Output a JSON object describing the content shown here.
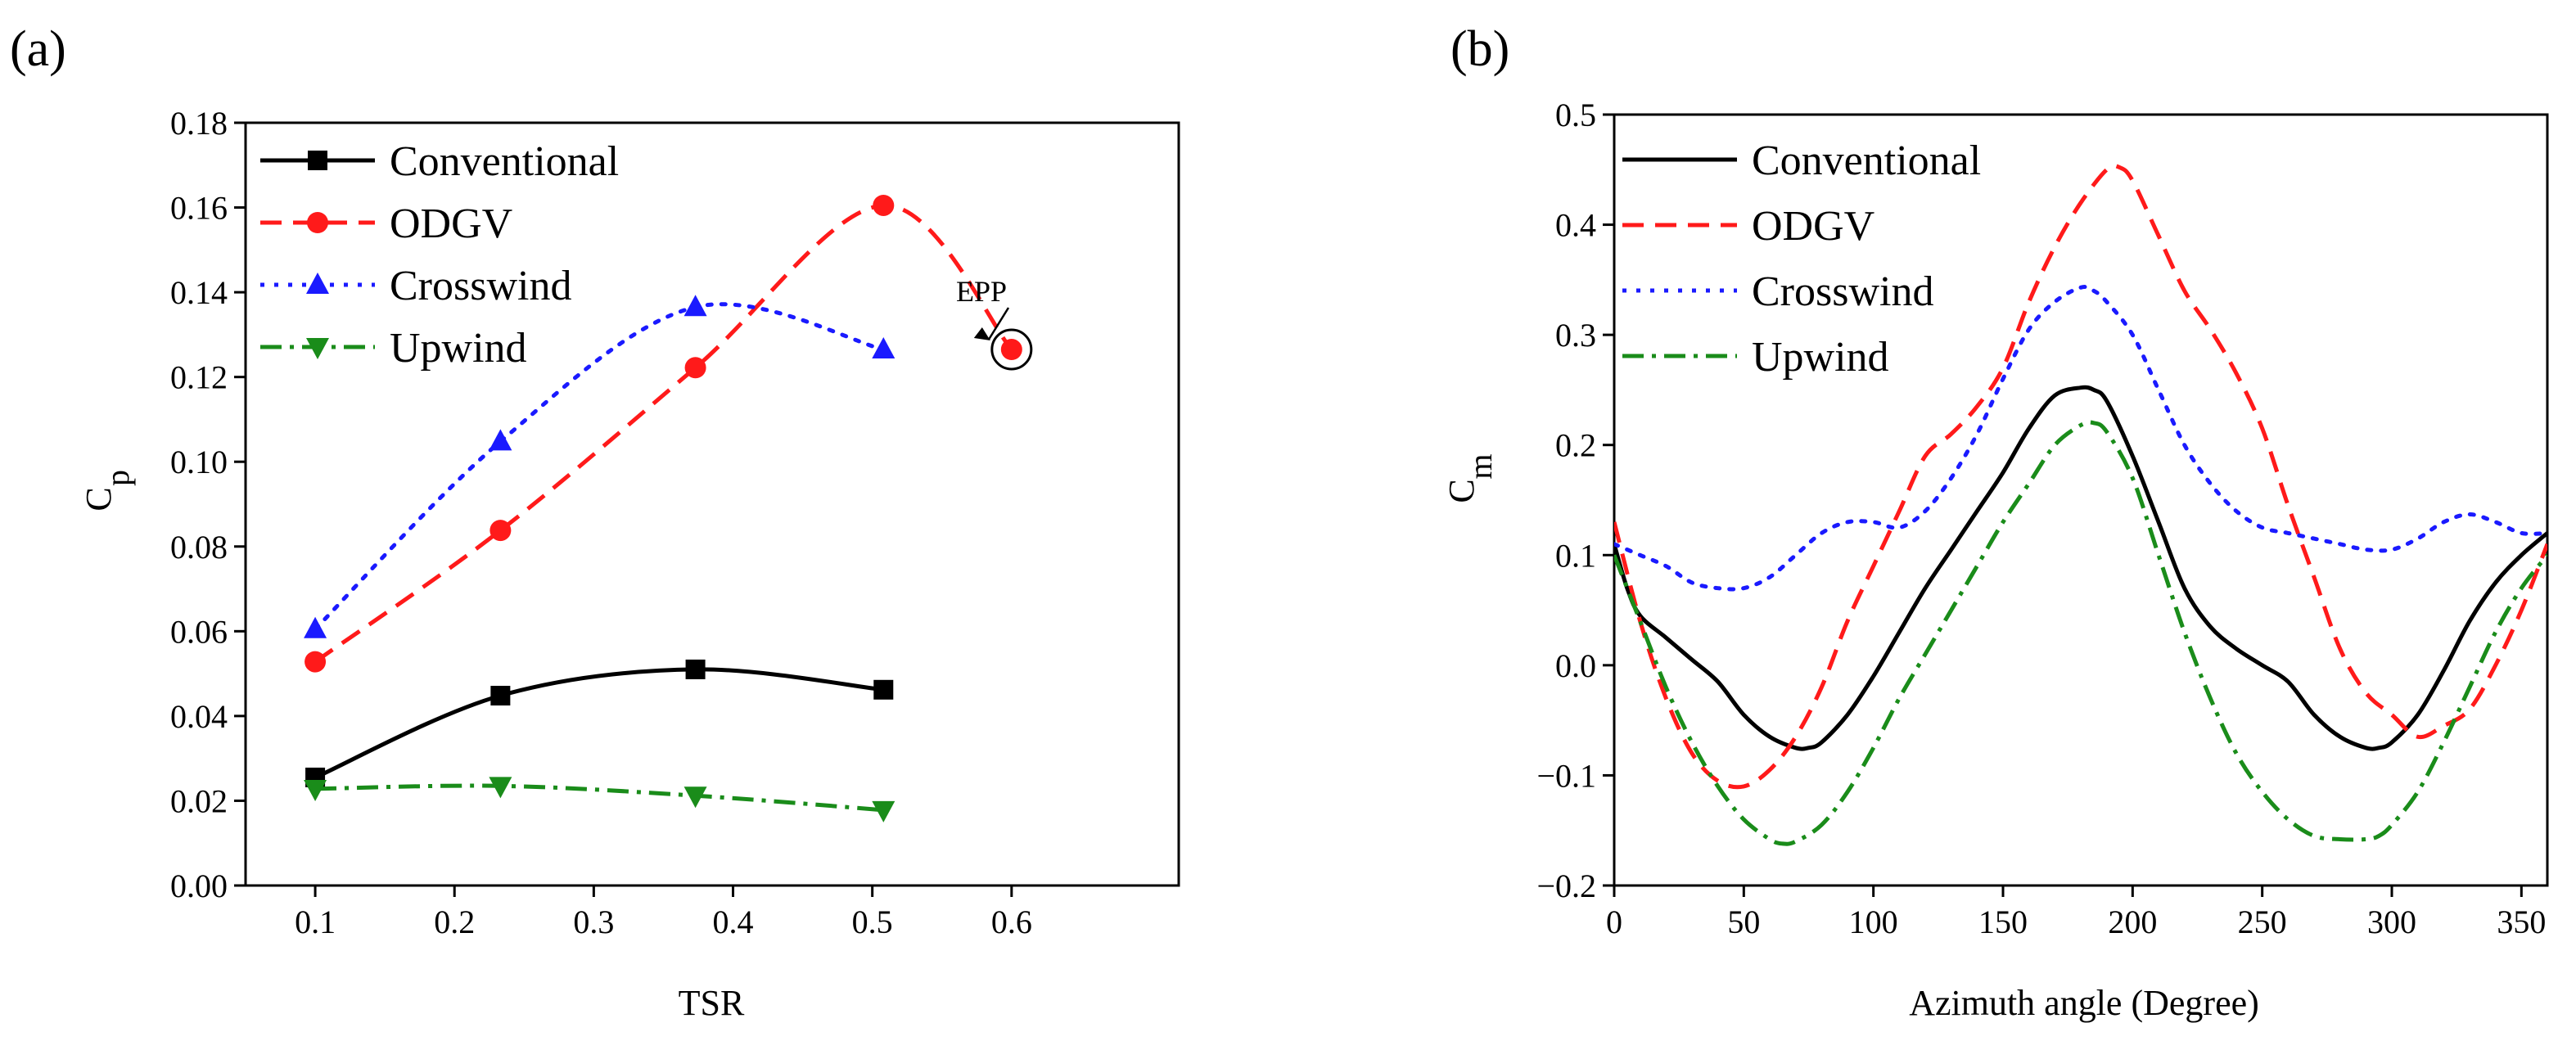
{
  "chart_data": [
    {
      "type": "line",
      "panel_label": "(a)",
      "xlabel": "TSR",
      "ylabel": "C",
      "ylabel_sub": "p",
      "xlim": [
        0.05,
        0.72
      ],
      "ylim": [
        0.0,
        0.18
      ],
      "xticks": [
        0.1,
        0.2,
        0.3,
        0.4,
        0.5,
        0.6
      ],
      "xtick_labels": [
        "0.1",
        "0.2",
        "0.3",
        "0.4",
        "0.5",
        "0.6"
      ],
      "yticks": [
        0.0,
        0.02,
        0.04,
        0.06,
        0.08,
        0.1,
        0.12,
        0.14,
        0.16,
        0.18
      ],
      "ytick_labels": [
        "0.00",
        "0.02",
        "0.04",
        "0.06",
        "0.08",
        "0.10",
        "0.12",
        "0.14",
        "0.16",
        "0.18"
      ],
      "legend_position": "top-left",
      "series": [
        {
          "name": "Conventional",
          "color": "#000000",
          "dash": "solid",
          "marker": "square",
          "x": [
            0.1,
            0.233,
            0.373,
            0.508
          ],
          "y": [
            0.0255,
            0.0448,
            0.051,
            0.0462
          ]
        },
        {
          "name": "ODGV",
          "color": "#ff1a1a",
          "dash": "dashed",
          "marker": "circle",
          "x": [
            0.1,
            0.233,
            0.373,
            0.508,
            0.6
          ],
          "y": [
            0.0528,
            0.0838,
            0.1222,
            0.1605,
            0.1265
          ]
        },
        {
          "name": "Crosswind",
          "color": "#1a1aff",
          "dash": "dotted",
          "marker": "triangle-up",
          "x": [
            0.1,
            0.233,
            0.373,
            0.508
          ],
          "y": [
            0.0605,
            0.1048,
            0.1365,
            0.1265
          ]
        },
        {
          "name": "Upwind",
          "color": "#1a8c1a",
          "dash": "dashdot",
          "marker": "triangle-down",
          "x": [
            0.1,
            0.233,
            0.373,
            0.508
          ],
          "y": [
            0.0228,
            0.0235,
            0.0212,
            0.0178
          ]
        }
      ],
      "annotations": [
        {
          "text": "EPP",
          "x": 0.6,
          "y": 0.1265
        }
      ]
    },
    {
      "type": "line",
      "panel_label": "(b)",
      "xlabel": "Azimuth angle (Degree)",
      "ylabel": "C",
      "ylabel_sub": "m",
      "xlim": [
        0,
        360
      ],
      "ylim": [
        -0.2,
        0.5
      ],
      "xticks": [
        0,
        50,
        100,
        150,
        200,
        250,
        300,
        350
      ],
      "xtick_labels": [
        "0",
        "50",
        "100",
        "150",
        "200",
        "250",
        "300",
        "350"
      ],
      "yticks": [
        -0.2,
        -0.1,
        0.0,
        0.1,
        0.2,
        0.3,
        0.4,
        0.5
      ],
      "ytick_labels": [
        "−0.2",
        "−0.1",
        "0.0",
        "0.1",
        "0.2",
        "0.3",
        "0.4",
        "0.5"
      ],
      "legend_position": "top-left",
      "series": [
        {
          "name": "Conventional",
          "color": "#000000",
          "dash": "solid",
          "x": [
            0,
            5,
            10,
            20,
            30,
            40,
            50,
            60,
            70,
            75,
            80,
            90,
            100,
            110,
            120,
            130,
            140,
            150,
            160,
            170,
            180,
            185,
            190,
            200,
            210,
            220,
            230,
            240,
            250,
            260,
            270,
            280,
            290,
            295,
            300,
            310,
            320,
            330,
            340,
            350,
            360
          ],
          "y": [
            0.11,
            0.07,
            0.045,
            0.025,
            0.005,
            -0.015,
            -0.045,
            -0.065,
            -0.075,
            -0.075,
            -0.07,
            -0.045,
            -0.01,
            0.03,
            0.07,
            0.105,
            0.14,
            0.175,
            0.215,
            0.245,
            0.252,
            0.25,
            0.24,
            0.19,
            0.13,
            0.07,
            0.035,
            0.015,
            0.0,
            -0.015,
            -0.045,
            -0.065,
            -0.075,
            -0.075,
            -0.07,
            -0.045,
            -0.005,
            0.04,
            0.075,
            0.1,
            0.12
          ]
        },
        {
          "name": "ODGV",
          "color": "#ff1a1a",
          "dash": "dashed",
          "x": [
            0,
            10,
            20,
            30,
            40,
            50,
            60,
            70,
            80,
            90,
            100,
            110,
            120,
            130,
            140,
            150,
            160,
            170,
            180,
            190,
            195,
            200,
            210,
            220,
            230,
            240,
            250,
            260,
            270,
            280,
            290,
            300,
            310,
            320,
            330,
            340,
            350,
            360
          ],
          "y": [
            0.13,
            0.04,
            -0.03,
            -0.08,
            -0.105,
            -0.11,
            -0.095,
            -0.065,
            -0.02,
            0.04,
            0.09,
            0.14,
            0.19,
            0.21,
            0.235,
            0.27,
            0.33,
            0.38,
            0.42,
            0.45,
            0.452,
            0.44,
            0.39,
            0.34,
            0.305,
            0.265,
            0.215,
            0.145,
            0.08,
            0.015,
            -0.025,
            -0.045,
            -0.065,
            -0.055,
            -0.04,
            0.0,
            0.05,
            0.11
          ]
        },
        {
          "name": "Crosswind",
          "color": "#1a1aff",
          "dash": "dotted",
          "x": [
            0,
            10,
            20,
            30,
            40,
            50,
            60,
            70,
            80,
            90,
            100,
            110,
            120,
            130,
            140,
            150,
            160,
            170,
            180,
            185,
            190,
            200,
            210,
            220,
            230,
            240,
            250,
            260,
            270,
            280,
            290,
            300,
            310,
            320,
            330,
            340,
            350,
            360
          ],
          "y": [
            0.11,
            0.1,
            0.09,
            0.075,
            0.07,
            0.07,
            0.08,
            0.1,
            0.12,
            0.13,
            0.13,
            0.125,
            0.14,
            0.17,
            0.21,
            0.26,
            0.305,
            0.33,
            0.343,
            0.34,
            0.33,
            0.3,
            0.25,
            0.2,
            0.165,
            0.14,
            0.125,
            0.12,
            0.115,
            0.11,
            0.105,
            0.105,
            0.115,
            0.13,
            0.137,
            0.13,
            0.12,
            0.12
          ]
        },
        {
          "name": "Upwind",
          "color": "#1a8c1a",
          "dash": "dashdot",
          "x": [
            0,
            10,
            20,
            30,
            40,
            50,
            60,
            65,
            70,
            80,
            90,
            100,
            110,
            120,
            130,
            140,
            150,
            160,
            170,
            180,
            185,
            190,
            200,
            210,
            220,
            230,
            240,
            250,
            260,
            270,
            280,
            290,
            295,
            300,
            310,
            320,
            330,
            340,
            350,
            360
          ],
          "y": [
            0.1,
            0.04,
            -0.02,
            -0.07,
            -0.11,
            -0.14,
            -0.158,
            -0.162,
            -0.16,
            -0.145,
            -0.115,
            -0.075,
            -0.03,
            0.01,
            0.05,
            0.09,
            0.13,
            0.165,
            0.2,
            0.218,
            0.22,
            0.212,
            0.17,
            0.1,
            0.03,
            -0.03,
            -0.08,
            -0.115,
            -0.14,
            -0.155,
            -0.158,
            -0.158,
            -0.155,
            -0.145,
            -0.115,
            -0.07,
            -0.02,
            0.03,
            0.07,
            0.1
          ]
        }
      ]
    }
  ]
}
